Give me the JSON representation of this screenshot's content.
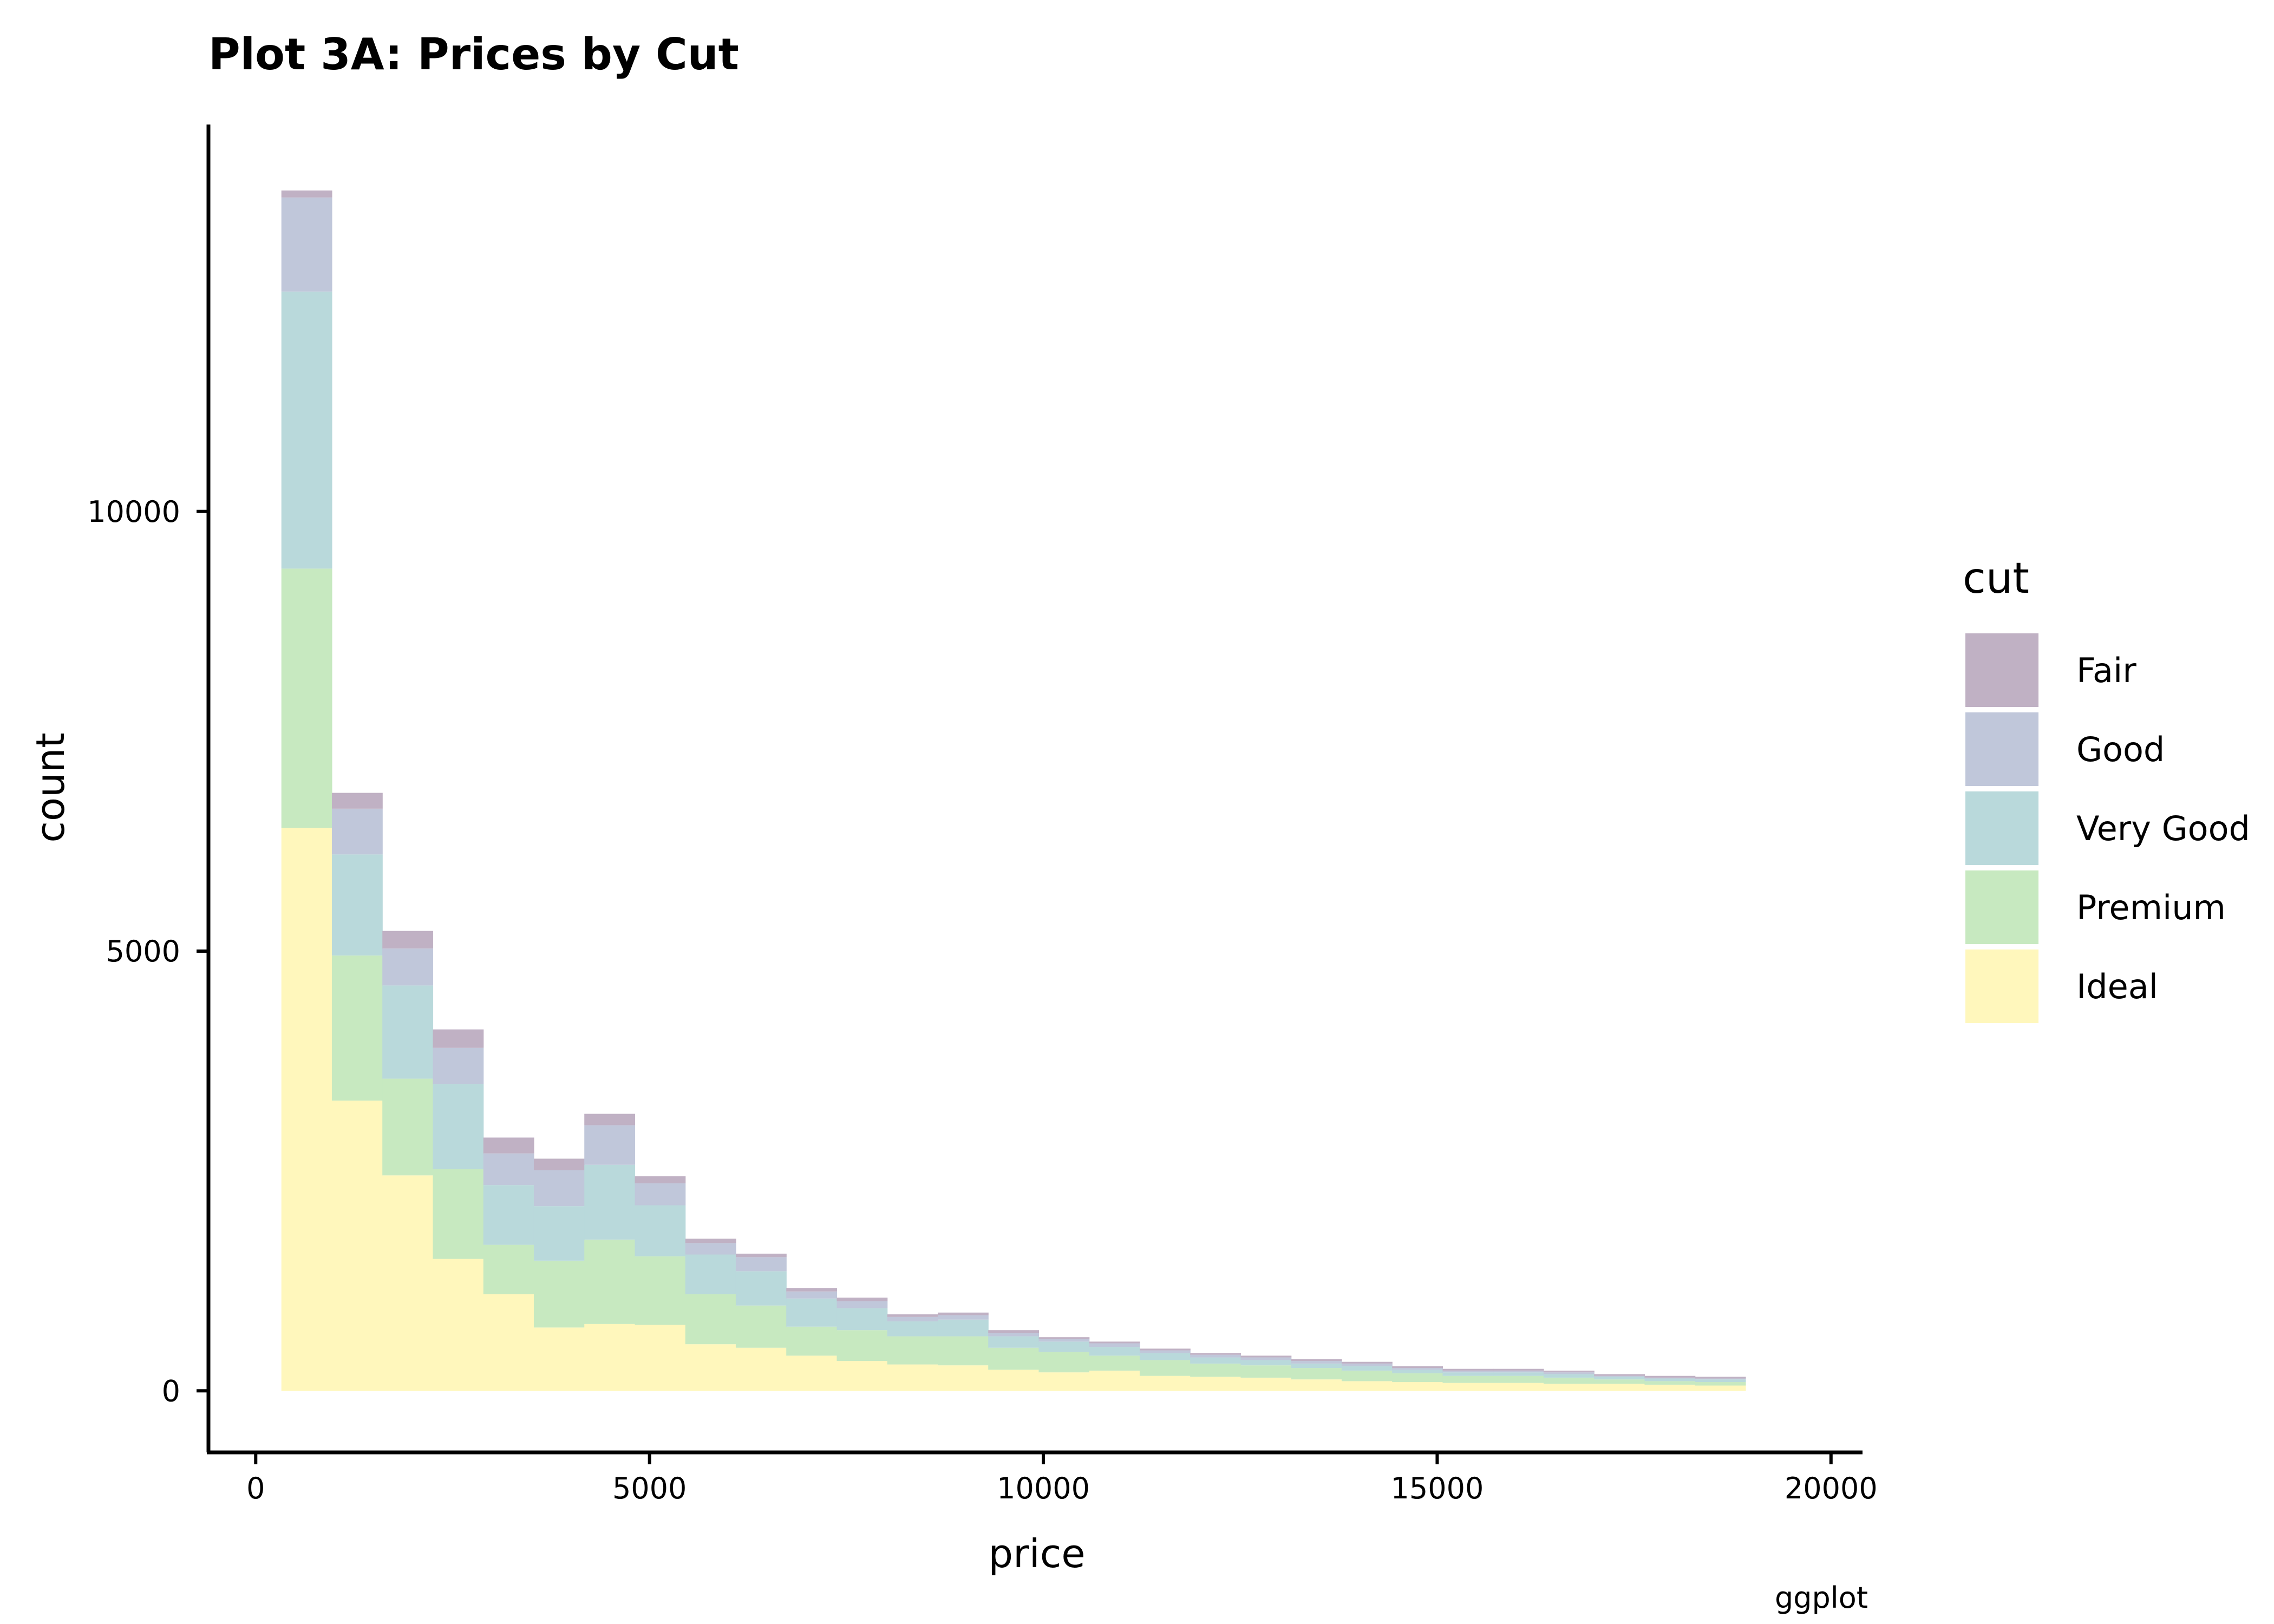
{
  "chart_data": {
    "type": "bar",
    "subtype": "stacked-histogram",
    "title": "Plot 3A: Prices by Cut",
    "xlabel": "price",
    "ylabel": "count",
    "caption": "ggplot",
    "xlim": [
      -600,
      20400
    ],
    "ylim": [
      -700,
      14400
    ],
    "x_ticks": [
      0,
      5000,
      10000,
      15000,
      20000
    ],
    "y_ticks": [
      0,
      5000,
      10000
    ],
    "grid": false,
    "legend_title": "cut",
    "legend_position": "right",
    "bin_edges": [
      326,
      967,
      1608,
      2249,
      2890,
      3531,
      4172,
      4813,
      5454,
      6095,
      6736,
      7377,
      8018,
      8659,
      9300,
      9941,
      10582,
      11223,
      11864,
      12505,
      13146,
      13787,
      14428,
      15069,
      15710,
      16351,
      16992,
      17633,
      18274,
      18915,
      19556
    ],
    "series": [
      {
        "name": "Ideal",
        "color": "#fff7bc",
        "values": [
          6400,
          3300,
          2450,
          1500,
          1100,
          720,
          760,
          750,
          530,
          490,
          400,
          340,
          300,
          290,
          240,
          210,
          230,
          170,
          160,
          150,
          130,
          110,
          100,
          90,
          90,
          80,
          80,
          70,
          60,
          0
        ]
      },
      {
        "name": "Premium",
        "color": "#c7e9c0",
        "values": [
          2950,
          1650,
          1100,
          1020,
          560,
          760,
          960,
          780,
          570,
          480,
          330,
          350,
          320,
          330,
          250,
          230,
          170,
          180,
          150,
          140,
          130,
          120,
          100,
          80,
          80,
          70,
          50,
          40,
          40,
          0
        ]
      },
      {
        "name": "Very Good",
        "color": "#b9d9db",
        "values": [
          3150,
          1150,
          1060,
          970,
          680,
          620,
          850,
          580,
          450,
          390,
          320,
          250,
          170,
          190,
          130,
          120,
          100,
          80,
          70,
          60,
          50,
          50,
          40,
          40,
          40,
          40,
          30,
          30,
          30,
          0
        ]
      },
      {
        "name": "Good",
        "color": "#c0c7da",
        "values": [
          1070,
          520,
          420,
          410,
          360,
          410,
          450,
          250,
          130,
          160,
          80,
          80,
          50,
          50,
          40,
          30,
          40,
          30,
          30,
          30,
          30,
          30,
          20,
          20,
          20,
          20,
          10,
          10,
          10,
          0
        ]
      },
      {
        "name": "Fair",
        "color": "#c0b1c4",
        "values": [
          80,
          180,
          200,
          210,
          180,
          130,
          130,
          80,
          50,
          40,
          40,
          40,
          30,
          30,
          30,
          20,
          20,
          20,
          20,
          20,
          20,
          20,
          20,
          20,
          20,
          20,
          20,
          20,
          20,
          0
        ]
      }
    ]
  }
}
